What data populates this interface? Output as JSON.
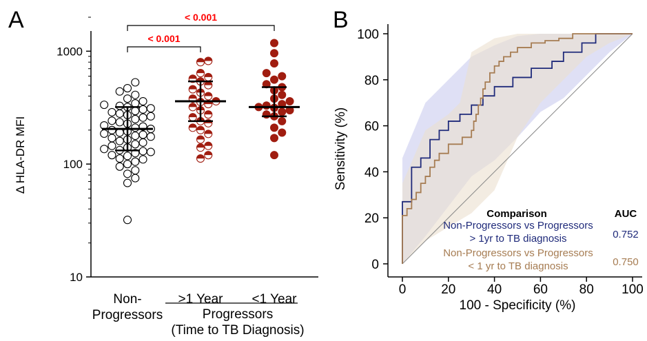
{
  "panels": {
    "a_letter": "A",
    "b_letter": "B"
  },
  "chart_data": [
    {
      "type": "scatter",
      "ylabel": "Δ HLA-DR MFI",
      "yscale": "log",
      "ylim": [
        10,
        2000
      ],
      "yticks": [
        {
          "value": 10,
          "label": "10"
        },
        {
          "value": 100,
          "label": "100"
        },
        {
          "value": 1000,
          "label": "1000"
        }
      ],
      "groups": [
        {
          "label_lines": [
            "Non-",
            "Progressors"
          ],
          "marker": "open-circle",
          "color": "#000000",
          "median": 205,
          "q1": 132,
          "q3": 320
        },
        {
          "label_lines": [
            ">1 Year"
          ],
          "marker": "half-filled-circle",
          "color": "#a01d10",
          "median": 360,
          "q1": 240,
          "q3": 540
        },
        {
          "label_lines": [
            "<1 Year"
          ],
          "marker": "filled-circle",
          "color": "#a01d10",
          "median": 320,
          "q1": 265,
          "q3": 480
        }
      ],
      "points": [
        [
          32,
          68,
          75,
          82,
          88,
          95,
          100,
          105,
          110,
          112,
          118,
          120,
          125,
          128,
          130,
          133,
          136,
          140,
          145,
          150,
          155,
          160,
          165,
          170,
          175,
          178,
          182,
          186,
          190,
          195,
          200,
          205,
          210,
          215,
          220,
          228,
          235,
          242,
          250,
          258,
          265,
          272,
          280,
          288,
          295,
          305,
          312,
          320,
          328,
          335,
          345,
          360,
          380,
          410,
          440,
          470,
          530
        ],
        [
          112,
          120,
          140,
          145,
          165,
          185,
          200,
          210,
          230,
          240,
          260,
          275,
          300,
          320,
          340,
          355,
          360,
          380,
          400,
          430,
          460,
          500,
          540,
          570,
          590,
          640,
          800,
          820
        ],
        [
          120,
          170,
          190,
          210,
          240,
          265,
          275,
          290,
          300,
          315,
          320,
          330,
          340,
          360,
          380,
          410,
          450,
          480,
          510,
          560,
          600,
          640,
          780,
          960,
          1180
        ]
      ],
      "group_title_lines": [
        "Progressors",
        "(Time to TB Diagnosis)"
      ],
      "significance": [
        {
          "from_group": 0,
          "to_group": 1,
          "label": "< 0.001",
          "color": "#ff0000"
        },
        {
          "from_group": 0,
          "to_group": 2,
          "label": "< 0.001",
          "color": "#ff0000"
        }
      ]
    },
    {
      "type": "line",
      "xlabel": "100 - Specificity (%)",
      "ylabel": "Sensitivity (%)",
      "xlim": [
        0,
        100
      ],
      "ylim": [
        0,
        100
      ],
      "xticks": [
        0,
        20,
        40,
        60,
        80,
        100
      ],
      "yticks": [
        0,
        20,
        40,
        60,
        80,
        100
      ],
      "reference_line": "diagonal",
      "series": [
        {
          "color": "#1f2a7a",
          "band_color": "#c9cbee",
          "x": [
            0,
            0,
            4,
            4,
            8,
            8,
            12,
            12,
            16,
            16,
            20,
            20,
            25,
            25,
            30,
            30,
            35,
            35,
            40,
            40,
            48,
            48,
            56,
            56,
            65,
            65,
            70,
            70,
            78,
            78,
            84,
            84,
            90,
            100
          ],
          "y": [
            0,
            27,
            27,
            42,
            42,
            46,
            46,
            54,
            54,
            58,
            58,
            62,
            62,
            65,
            65,
            69,
            69,
            73,
            73,
            77,
            77,
            81,
            81,
            85,
            85,
            88,
            88,
            92,
            92,
            96,
            96,
            100,
            100,
            100
          ],
          "band_lower": [
            [
              0,
              0
            ],
            [
              10,
              12
            ],
            [
              20,
              25
            ],
            [
              30,
              38
            ],
            [
              40,
              45
            ],
            [
              50,
              55
            ],
            [
              60,
              66
            ],
            [
              70,
              72
            ],
            [
              80,
              82
            ],
            [
              90,
              92
            ],
            [
              100,
              100
            ]
          ],
          "band_upper": [
            [
              0,
              0
            ],
            [
              0,
              46
            ],
            [
              10,
              70
            ],
            [
              20,
              80
            ],
            [
              30,
              90
            ],
            [
              40,
              95
            ],
            [
              50,
              99
            ],
            [
              60,
              100
            ],
            [
              100,
              100
            ]
          ]
        },
        {
          "color": "#a67c52",
          "band_color": "#ebe0cf",
          "x": [
            0,
            0,
            2,
            2,
            4,
            4,
            6,
            6,
            8,
            8,
            10,
            10,
            12,
            12,
            14,
            14,
            16,
            16,
            20,
            20,
            26,
            26,
            30,
            30,
            31,
            31,
            32,
            32,
            33,
            33,
            34,
            34,
            35,
            35,
            36,
            36,
            38,
            38,
            40,
            40,
            42,
            42,
            44,
            44,
            47,
            47,
            50,
            50,
            56,
            56,
            62,
            62,
            68,
            68,
            74,
            74,
            80,
            80,
            100
          ],
          "y": [
            0,
            21,
            21,
            24,
            24,
            28,
            28,
            31,
            31,
            35,
            35,
            38,
            38,
            42,
            42,
            45,
            45,
            48,
            48,
            52,
            52,
            55,
            55,
            58,
            58,
            62,
            62,
            65,
            65,
            69,
            69,
            72,
            72,
            76,
            76,
            79,
            79,
            83,
            83,
            86,
            86,
            88,
            88,
            90,
            90,
            92,
            92,
            94,
            94,
            96,
            96,
            97,
            97,
            98,
            98,
            100,
            100,
            100,
            100
          ],
          "band_lower": [
            [
              0,
              0
            ],
            [
              10,
              10
            ],
            [
              20,
              16
            ],
            [
              30,
              22
            ],
            [
              40,
              32
            ],
            [
              50,
              55
            ],
            [
              60,
              70
            ],
            [
              70,
              80
            ],
            [
              80,
              90
            ],
            [
              90,
              96
            ],
            [
              100,
              100
            ]
          ],
          "band_upper": [
            [
              0,
              0
            ],
            [
              0,
              35
            ],
            [
              10,
              58
            ],
            [
              20,
              65
            ],
            [
              25,
              70
            ],
            [
              30,
              92
            ],
            [
              40,
              98
            ],
            [
              50,
              100
            ],
            [
              100,
              100
            ]
          ]
        }
      ],
      "legend": {
        "header_left": "Comparison",
        "header_right": "AUC",
        "rows": [
          {
            "lines": [
              "Non-Progressors vs  Progressors",
              "> 1yr to TB diagnosis"
            ],
            "auc": "0.752",
            "color": "#1f2a7a"
          },
          {
            "lines": [
              "Non-Progressors vs Progressors",
              "< 1 yr to TB diagnosis"
            ],
            "auc": "0.750",
            "color": "#a67c52"
          }
        ]
      }
    }
  ]
}
